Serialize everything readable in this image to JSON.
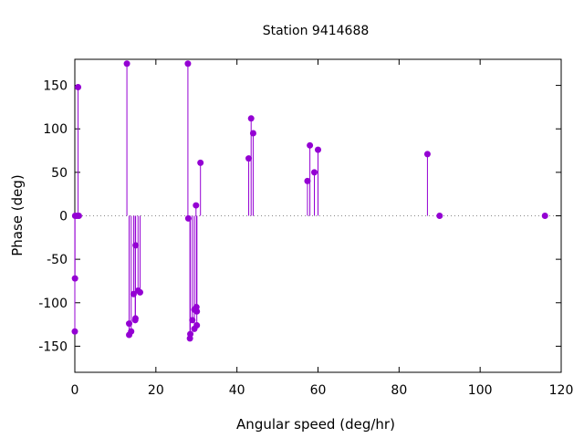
{
  "chart_data": {
    "type": "scatter",
    "style": "impulses-with-points",
    "title": "Station 9414688",
    "xlabel": "Angular speed (deg/hr)",
    "ylabel": "Phase (deg)",
    "xlim": [
      0,
      120
    ],
    "ylim": [
      -180,
      180
    ],
    "x_ticks": [
      0,
      20,
      40,
      60,
      80,
      100,
      120
    ],
    "y_ticks": [
      -150,
      -100,
      -50,
      0,
      50,
      100,
      150
    ],
    "grid": false,
    "zero_line": "dotted",
    "color": "#9400D3",
    "series": [
      {
        "points": [
          {
            "x": 0.0,
            "y": -133
          },
          {
            "x": 0.04,
            "y": -72
          },
          {
            "x": 0.08,
            "y": 0
          },
          {
            "x": 0.5,
            "y": 0
          },
          {
            "x": 0.8,
            "y": 148
          },
          {
            "x": 1.0,
            "y": 0
          },
          {
            "x": 12.85,
            "y": 175
          },
          {
            "x": 13.4,
            "y": -124
          },
          {
            "x": 13.4,
            "y": -137
          },
          {
            "x": 13.9,
            "y": -133
          },
          {
            "x": 14.5,
            "y": -90
          },
          {
            "x": 14.9,
            "y": -120
          },
          {
            "x": 14.96,
            "y": -118
          },
          {
            "x": 15.0,
            "y": -34
          },
          {
            "x": 15.6,
            "y": -86
          },
          {
            "x": 16.1,
            "y": -88
          },
          {
            "x": 27.9,
            "y": 175
          },
          {
            "x": 28.0,
            "y": -3
          },
          {
            "x": 28.4,
            "y": -141
          },
          {
            "x": 28.5,
            "y": -136
          },
          {
            "x": 29.0,
            "y": -120
          },
          {
            "x": 29.5,
            "y": -130
          },
          {
            "x": 29.5,
            "y": -108
          },
          {
            "x": 29.9,
            "y": 12
          },
          {
            "x": 30.0,
            "y": -105
          },
          {
            "x": 30.1,
            "y": -110
          },
          {
            "x": 30.1,
            "y": -126
          },
          {
            "x": 31.0,
            "y": 61
          },
          {
            "x": 42.9,
            "y": 66
          },
          {
            "x": 43.5,
            "y": 112
          },
          {
            "x": 44.0,
            "y": 95
          },
          {
            "x": 57.4,
            "y": 40
          },
          {
            "x": 58.0,
            "y": 81
          },
          {
            "x": 59.1,
            "y": 50
          },
          {
            "x": 60.0,
            "y": 76
          },
          {
            "x": 87.0,
            "y": 71
          },
          {
            "x": 90.0,
            "y": 0
          },
          {
            "x": 116.0,
            "y": 0
          }
        ]
      }
    ]
  }
}
